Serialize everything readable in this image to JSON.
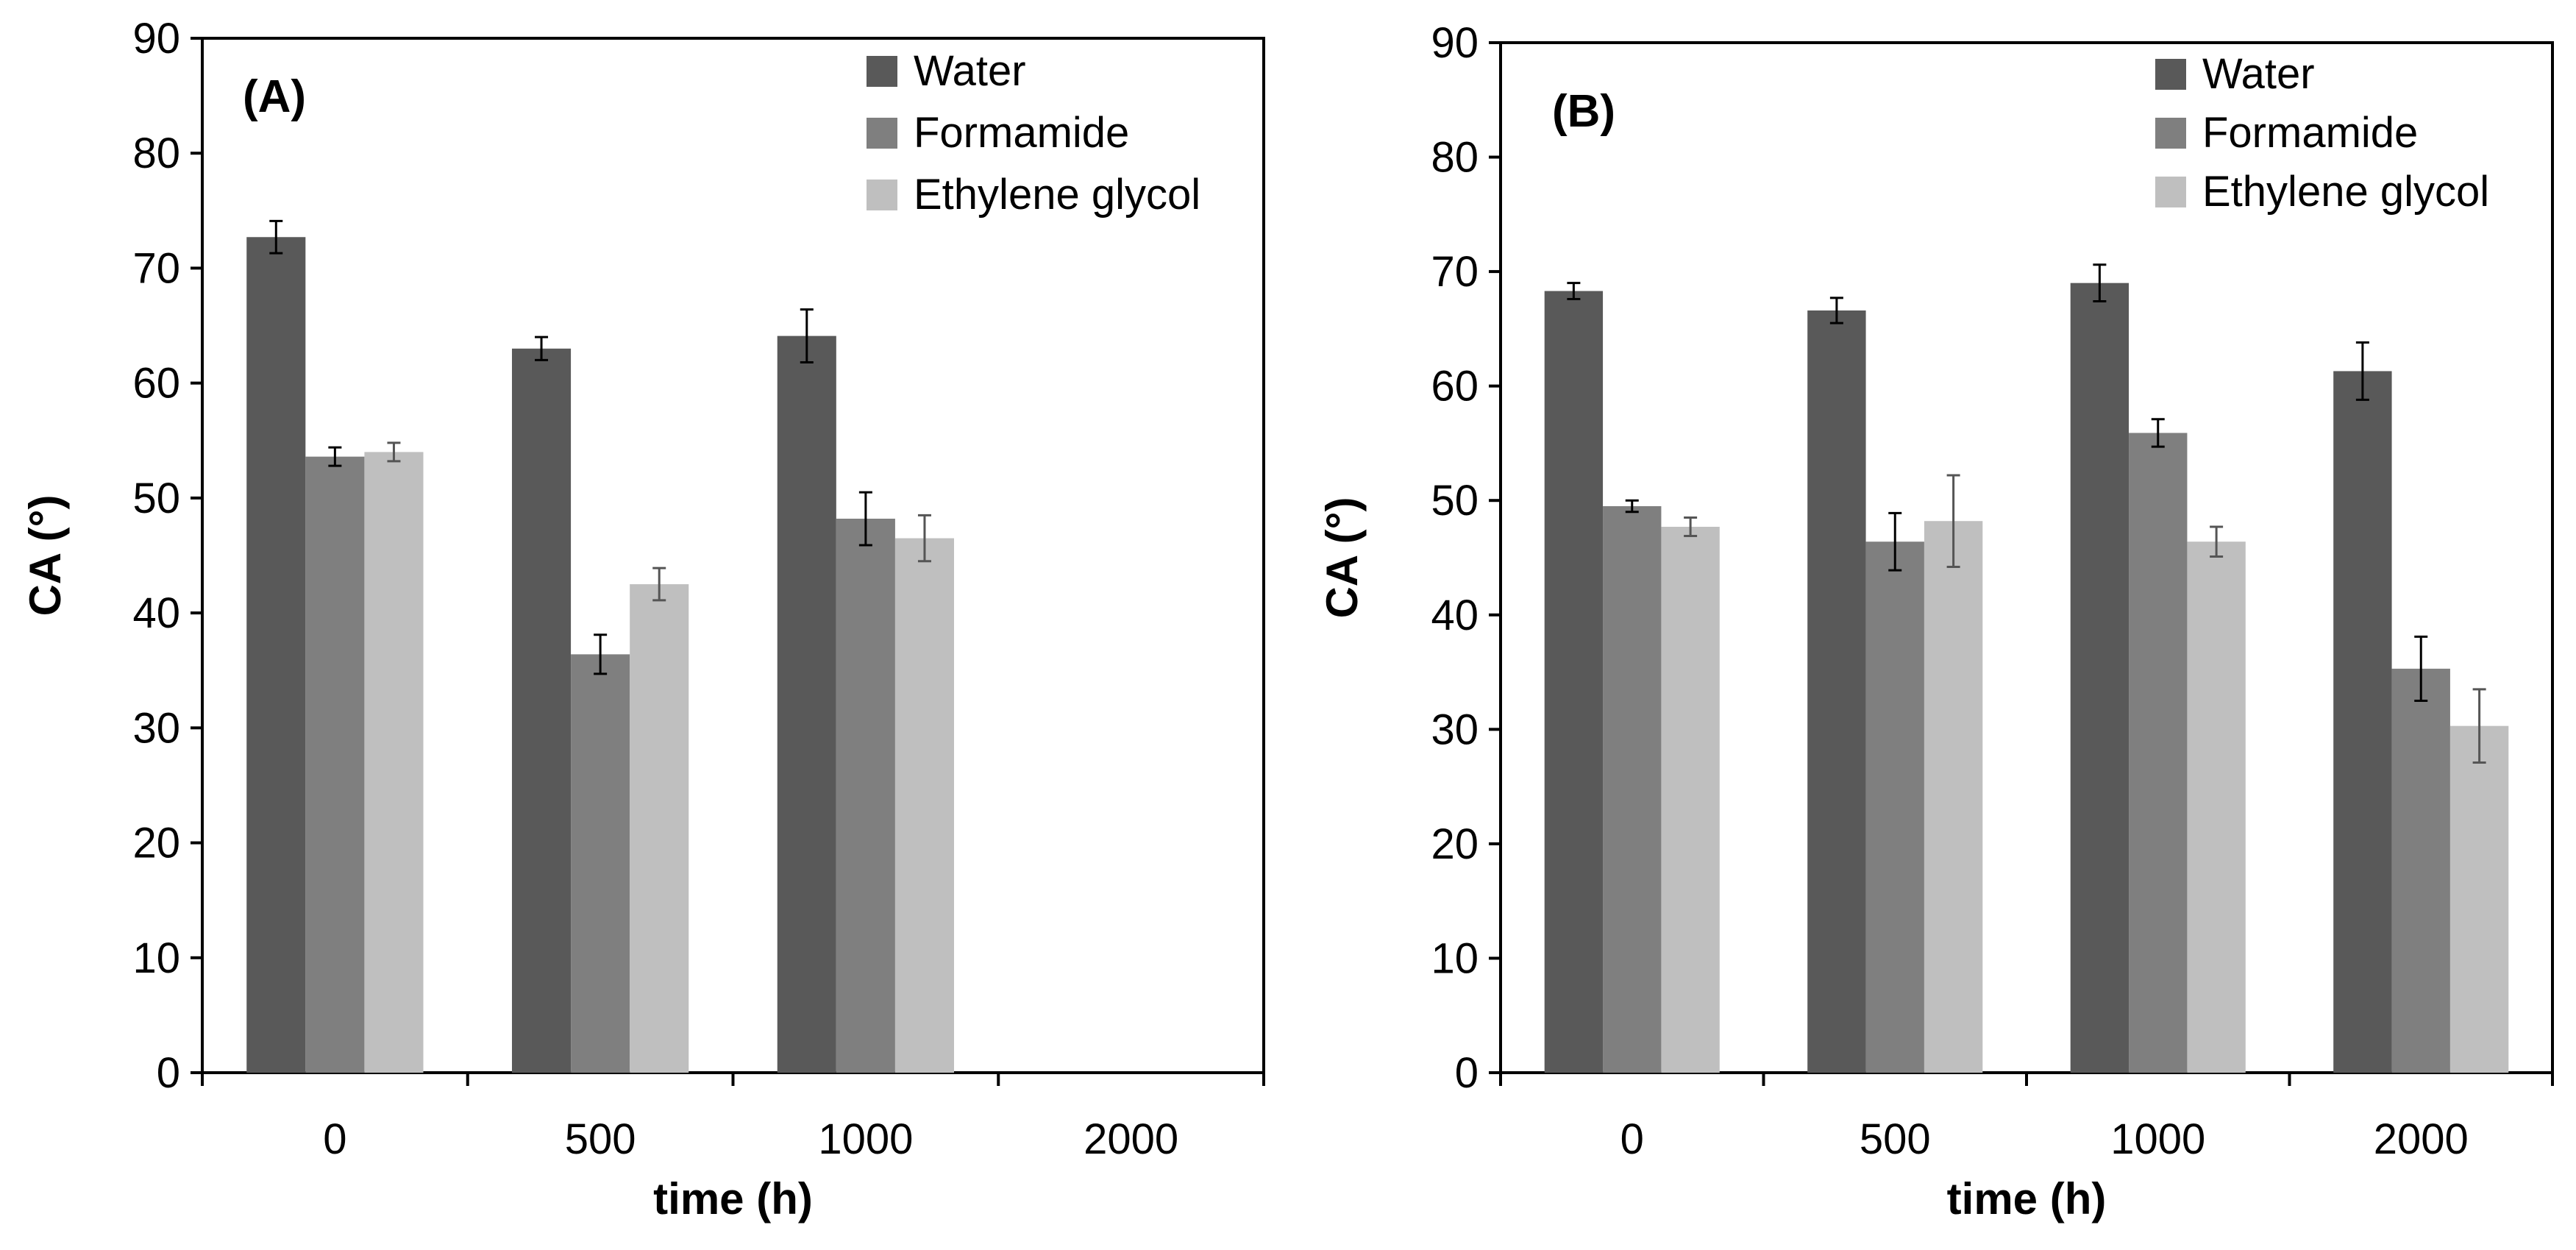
{
  "chart_data": [
    {
      "type": "bar",
      "panel_label": "(A)",
      "categories": [
        "0",
        "500",
        "1000",
        "2000"
      ],
      "series": [
        {
          "name": "Water",
          "color": "#595959",
          "values": [
            72.7,
            63.0,
            64.1,
            null
          ],
          "errors": [
            1.4,
            1.0,
            2.3,
            null
          ]
        },
        {
          "name": "Formamide",
          "color": "#7f7f7f",
          "values": [
            53.6,
            36.4,
            48.2,
            null
          ],
          "errors": [
            0.8,
            1.7,
            2.3,
            null
          ]
        },
        {
          "name": "Ethylene glycol",
          "color": "#bfbfbf",
          "values": [
            54.0,
            42.5,
            46.5,
            null
          ],
          "errors": [
            0.8,
            1.4,
            2.0,
            null
          ]
        }
      ],
      "xlabel": "time (h)",
      "ylabel": "CA (°)",
      "ylim": [
        0,
        90
      ],
      "yticks": [
        0,
        10,
        20,
        30,
        40,
        50,
        60,
        70,
        80,
        90
      ],
      "legend_position": "top-right"
    },
    {
      "type": "bar",
      "panel_label": "(B)",
      "categories": [
        "0",
        "500",
        "1000",
        "2000"
      ],
      "series": [
        {
          "name": "Water",
          "color": "#595959",
          "values": [
            68.3,
            66.6,
            69.0,
            61.3
          ],
          "errors": [
            0.7,
            1.1,
            1.6,
            2.5
          ]
        },
        {
          "name": "Formamide",
          "color": "#7f7f7f",
          "values": [
            49.5,
            46.4,
            55.9,
            35.3
          ],
          "errors": [
            0.5,
            2.5,
            1.2,
            2.8
          ]
        },
        {
          "name": "Ethylene glycol",
          "color": "#bfbfbf",
          "values": [
            47.7,
            48.2,
            46.4,
            30.3
          ],
          "errors": [
            0.8,
            4.0,
            1.3,
            3.2
          ]
        }
      ],
      "xlabel": "time (h)",
      "ylabel": "CA (°)",
      "ylim": [
        0,
        90
      ],
      "yticks": [
        0,
        10,
        20,
        30,
        40,
        50,
        60,
        70,
        80,
        90
      ],
      "legend_position": "top-right"
    }
  ]
}
